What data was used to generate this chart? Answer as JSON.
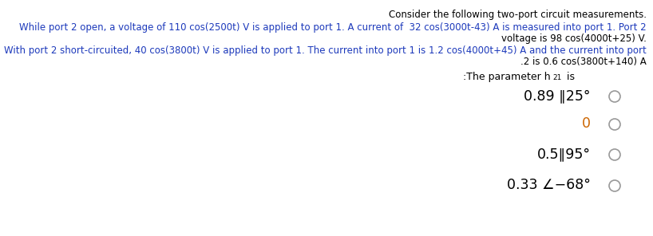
{
  "bg_color": "#ffffff",
  "title_text": "Consider the following two-port circuit measurements.",
  "line1a_text": "While port 2 open, a voltage of 110 cos(2500t) V is applied to port 1. A current of  32 cos(3000t-43) A is measured into port 1. Port 2",
  "line1b_text": "voltage is 98 cos(4000t+25) V.",
  "line2a_text": "With port 2 short-circuited, 40 cos(3800t) V is applied to port 1. The current into port 1 is 1.2 cos(4000t+45) A and the current into port",
  "line2b_text": ".2 is 0.6 cos(3800t+140) A",
  "param_text": ":The parameter h",
  "param_sub": "21",
  "param_is": " is",
  "option1_text": "0.89 ∥25°",
  "option2_text": "0",
  "option3_text": "0.5∥95°",
  "option4_text": "0.33 ∠−68°",
  "black_color": "#000000",
  "blue_color": "#1c39bb",
  "orange_color": "#cc6600",
  "gray_color": "#999999",
  "fs_body": 8.5,
  "fs_options": 12.5,
  "fs_param": 9.0
}
